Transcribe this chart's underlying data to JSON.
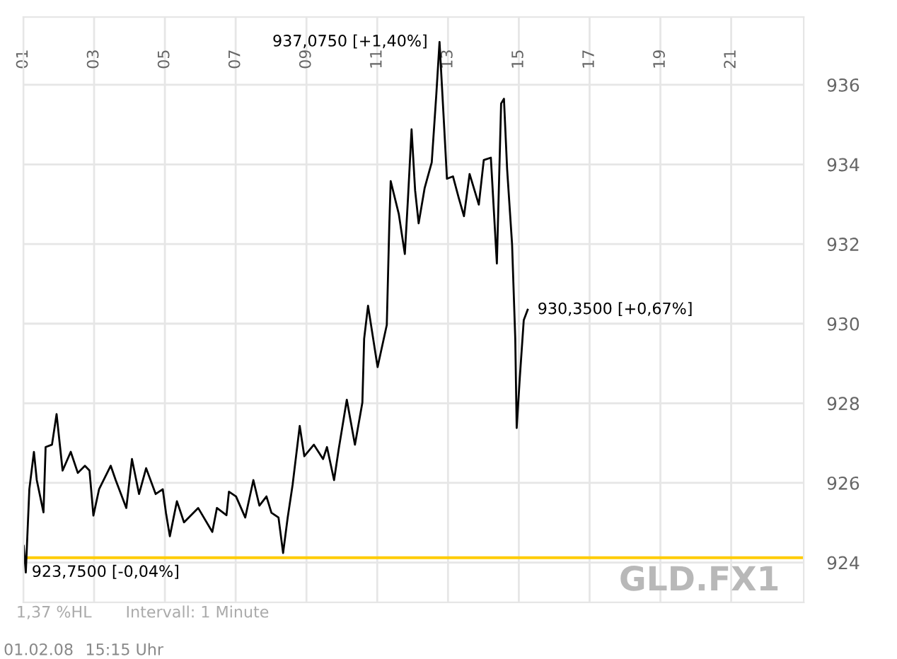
{
  "chart_data": {
    "type": "line",
    "series": [
      {
        "color": "#000000",
        "x": [
          1.01,
          1.07,
          1.17,
          1.3,
          1.38,
          1.57,
          1.63,
          1.81,
          1.94,
          2.01,
          2.11,
          2.34,
          2.54,
          2.74,
          2.87,
          2.98,
          3.14,
          3.47,
          3.61,
          3.91,
          4.07,
          4.27,
          4.47,
          4.74,
          4.94,
          5.03,
          5.14,
          5.34,
          5.54,
          5.94,
          6.34,
          6.47,
          6.74,
          6.81,
          7.01,
          7.27,
          7.5,
          7.67,
          7.87,
          8.01,
          8.21,
          8.34,
          8.47,
          8.61,
          8.81,
          8.94,
          9.21,
          9.47,
          9.58,
          9.78,
          9.91,
          10.14,
          10.37,
          10.58,
          10.63,
          10.74,
          11.01,
          11.27,
          11.34,
          11.38,
          11.61,
          11.78,
          11.87,
          11.97,
          12.07,
          12.17,
          12.34,
          12.54,
          12.67,
          12.76,
          12.87,
          12.97,
          13.14,
          13.3,
          13.45,
          13.61,
          13.87,
          14.01,
          14.21,
          14.38,
          14.5,
          14.58,
          14.67,
          14.81,
          14.9,
          14.94,
          15.03,
          15.14,
          15.25
        ],
        "values": [
          924.42,
          923.75,
          925.84,
          926.78,
          926.07,
          925.26,
          926.9,
          926.96,
          927.73,
          927.14,
          926.31,
          926.78,
          926.25,
          926.43,
          926.31,
          925.18,
          925.84,
          926.43,
          926.07,
          925.37,
          926.6,
          925.72,
          926.37,
          925.72,
          925.84,
          925.25,
          924.66,
          925.54,
          925.01,
          925.37,
          924.77,
          925.37,
          925.19,
          925.78,
          925.66,
          925.13,
          926.07,
          925.43,
          925.66,
          925.25,
          925.13,
          924.24,
          925.13,
          925.96,
          927.43,
          926.67,
          926.96,
          926.6,
          926.9,
          926.07,
          926.84,
          928.09,
          926.96,
          928.02,
          929.62,
          930.45,
          928.91,
          929.97,
          932.46,
          933.58,
          932.75,
          931.75,
          933.17,
          934.88,
          933.35,
          932.52,
          933.41,
          934.05,
          935.77,
          937.075,
          935.29,
          933.64,
          933.7,
          933.17,
          932.7,
          933.76,
          932.99,
          934.11,
          934.17,
          931.51,
          935.53,
          935.65,
          933.88,
          931.99,
          929.62,
          927.38,
          928.67,
          930.09,
          930.35
        ]
      }
    ],
    "xlim": [
      1,
      23.05
    ],
    "xticks": [
      {
        "value": 1,
        "label": "01"
      },
      {
        "value": 3,
        "label": "03"
      },
      {
        "value": 5,
        "label": "05"
      },
      {
        "value": 7,
        "label": "07"
      },
      {
        "value": 9,
        "label": "09"
      },
      {
        "value": 11,
        "label": "11"
      },
      {
        "value": 13,
        "label": "13"
      },
      {
        "value": 15,
        "label": "15"
      },
      {
        "value": 17,
        "label": "17"
      },
      {
        "value": 19,
        "label": "19"
      },
      {
        "value": 21,
        "label": "21"
      }
    ],
    "ylim": [
      923.0,
      937.7
    ],
    "yticks": [
      924,
      926,
      928,
      930,
      932,
      934,
      936
    ],
    "grid": true,
    "ref_lines": [
      {
        "axis": "y",
        "value": 924.12,
        "color": "#ffcc00"
      }
    ],
    "annotations": [
      {
        "text": "937,0750 [+1,40%]",
        "x": 12.76,
        "y": 937.075
      },
      {
        "text": "930,3500 [+0,67%]",
        "x": 15.25,
        "y": 930.35
      },
      {
        "text": "923,7500 [-0,04%]",
        "x": 1.07,
        "y": 923.75
      },
      "GLD.FX1",
      "1,37 %HL",
      "Intervall: 1 Minute",
      "01.02.08",
      "15:15 Uhr"
    ]
  }
}
